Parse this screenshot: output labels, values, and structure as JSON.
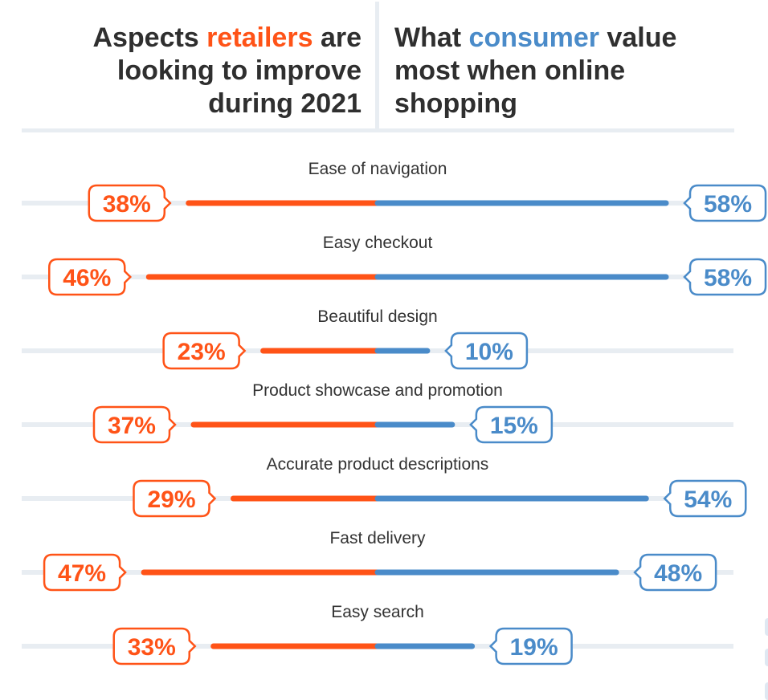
{
  "header": {
    "left_title": {
      "prefix": "Aspects ",
      "highlight": "retailers",
      "suffix_line1": " are",
      "line2": "looking to improve",
      "line3": "during 2021"
    },
    "right_title": {
      "prefix": "What ",
      "highlight": "consumer",
      "suffix_line1": " value",
      "line2": "most when online",
      "line3": "shopping"
    }
  },
  "colors": {
    "retailers": "#ff5317",
    "consumers": "#4a8bc9",
    "track": "#e8edf2",
    "text": "#2f2f2f"
  },
  "chart_data": {
    "type": "bar",
    "orientation": "horizontal-diverging",
    "title": "Aspects retailers are looking to improve during 2021 vs. What consumer value most when online shopping",
    "categories": [
      "Ease of navigation",
      "Easy checkout",
      "Beautiful design",
      "Product showcase and promotion",
      "Accurate product descriptions",
      "Fast delivery",
      "Easy search"
    ],
    "series": [
      {
        "name": "Retailers (looking to improve during 2021)",
        "side": "left",
        "color": "#ff5317",
        "values": [
          38,
          46,
          23,
          37,
          29,
          47,
          33
        ]
      },
      {
        "name": "Consumers (value most when online shopping)",
        "side": "right",
        "color": "#4a8bc9",
        "values": [
          58,
          58,
          10,
          15,
          54,
          48,
          19
        ]
      }
    ],
    "unit": "%",
    "xlim": [
      0,
      70
    ],
    "grid": false,
    "legend": "none (series named in header titles)"
  }
}
